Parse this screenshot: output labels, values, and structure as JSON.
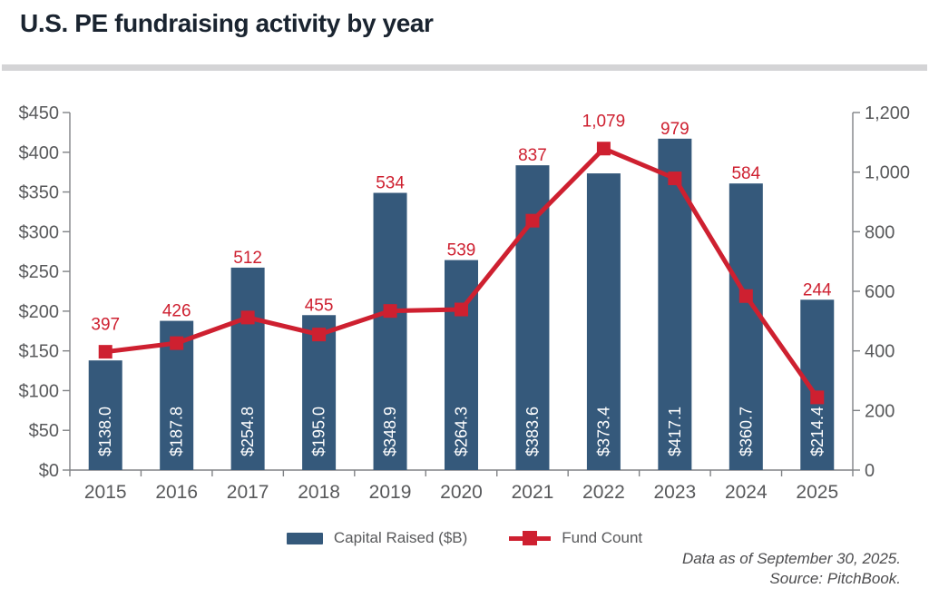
{
  "header": {
    "title": "U.S. PE fundraising activity by year"
  },
  "legend": {
    "capital_raised": "Capital Raised ($B)",
    "fund_count": "Fund Count"
  },
  "footnote": {
    "line1": "Data as of September 30, 2025.",
    "line2": "Source: PitchBook."
  },
  "colors": {
    "bar": "#35597B",
    "line": "#CE2030",
    "axis": "#808285",
    "axis_text": "#58595B",
    "title_text": "#1A2430",
    "bar_label_text": "#FFFFFF",
    "divider": "#D4D4D6",
    "footnote_text": "#4C4C4E"
  },
  "chart_data": {
    "type": "bar+line combo",
    "title": "U.S. PE fundraising activity by year",
    "categories": [
      "2015",
      "2016",
      "2017",
      "2018",
      "2019",
      "2020",
      "2021",
      "2022",
      "2023",
      "2024",
      "2025"
    ],
    "series": [
      {
        "name": "Capital Raised ($B)",
        "type": "bar",
        "axis": "left",
        "values": [
          138.0,
          187.8,
          254.8,
          195.0,
          348.9,
          264.3,
          383.6,
          373.4,
          417.1,
          360.7,
          214.4
        ],
        "labels": [
          "$138.0",
          "$187.8",
          "$254.8",
          "$195.0",
          "$348.9",
          "$264.3",
          "$383.6",
          "$373.4",
          "$417.1",
          "$360.7",
          "$214.4"
        ]
      },
      {
        "name": "Fund Count",
        "type": "line",
        "axis": "right",
        "values": [
          397,
          426,
          512,
          455,
          534,
          539,
          837,
          1079,
          979,
          584,
          244
        ],
        "labels": [
          "397",
          "426",
          "512",
          "455",
          "534",
          "539",
          "837",
          "1,079",
          "979",
          "584",
          "244"
        ]
      }
    ],
    "left_axis": {
      "min": 0,
      "max": 450,
      "step": 50,
      "tick_labels": [
        "$0",
        "$50",
        "$100",
        "$150",
        "$200",
        "$250",
        "$300",
        "$350",
        "$400",
        "$450"
      ]
    },
    "right_axis": {
      "min": 0,
      "max": 1200,
      "step": 200,
      "tick_labels": [
        "0",
        "200",
        "400",
        "600",
        "800",
        "1,000",
        "1,200"
      ]
    },
    "grid": false,
    "legend_position": "bottom"
  }
}
